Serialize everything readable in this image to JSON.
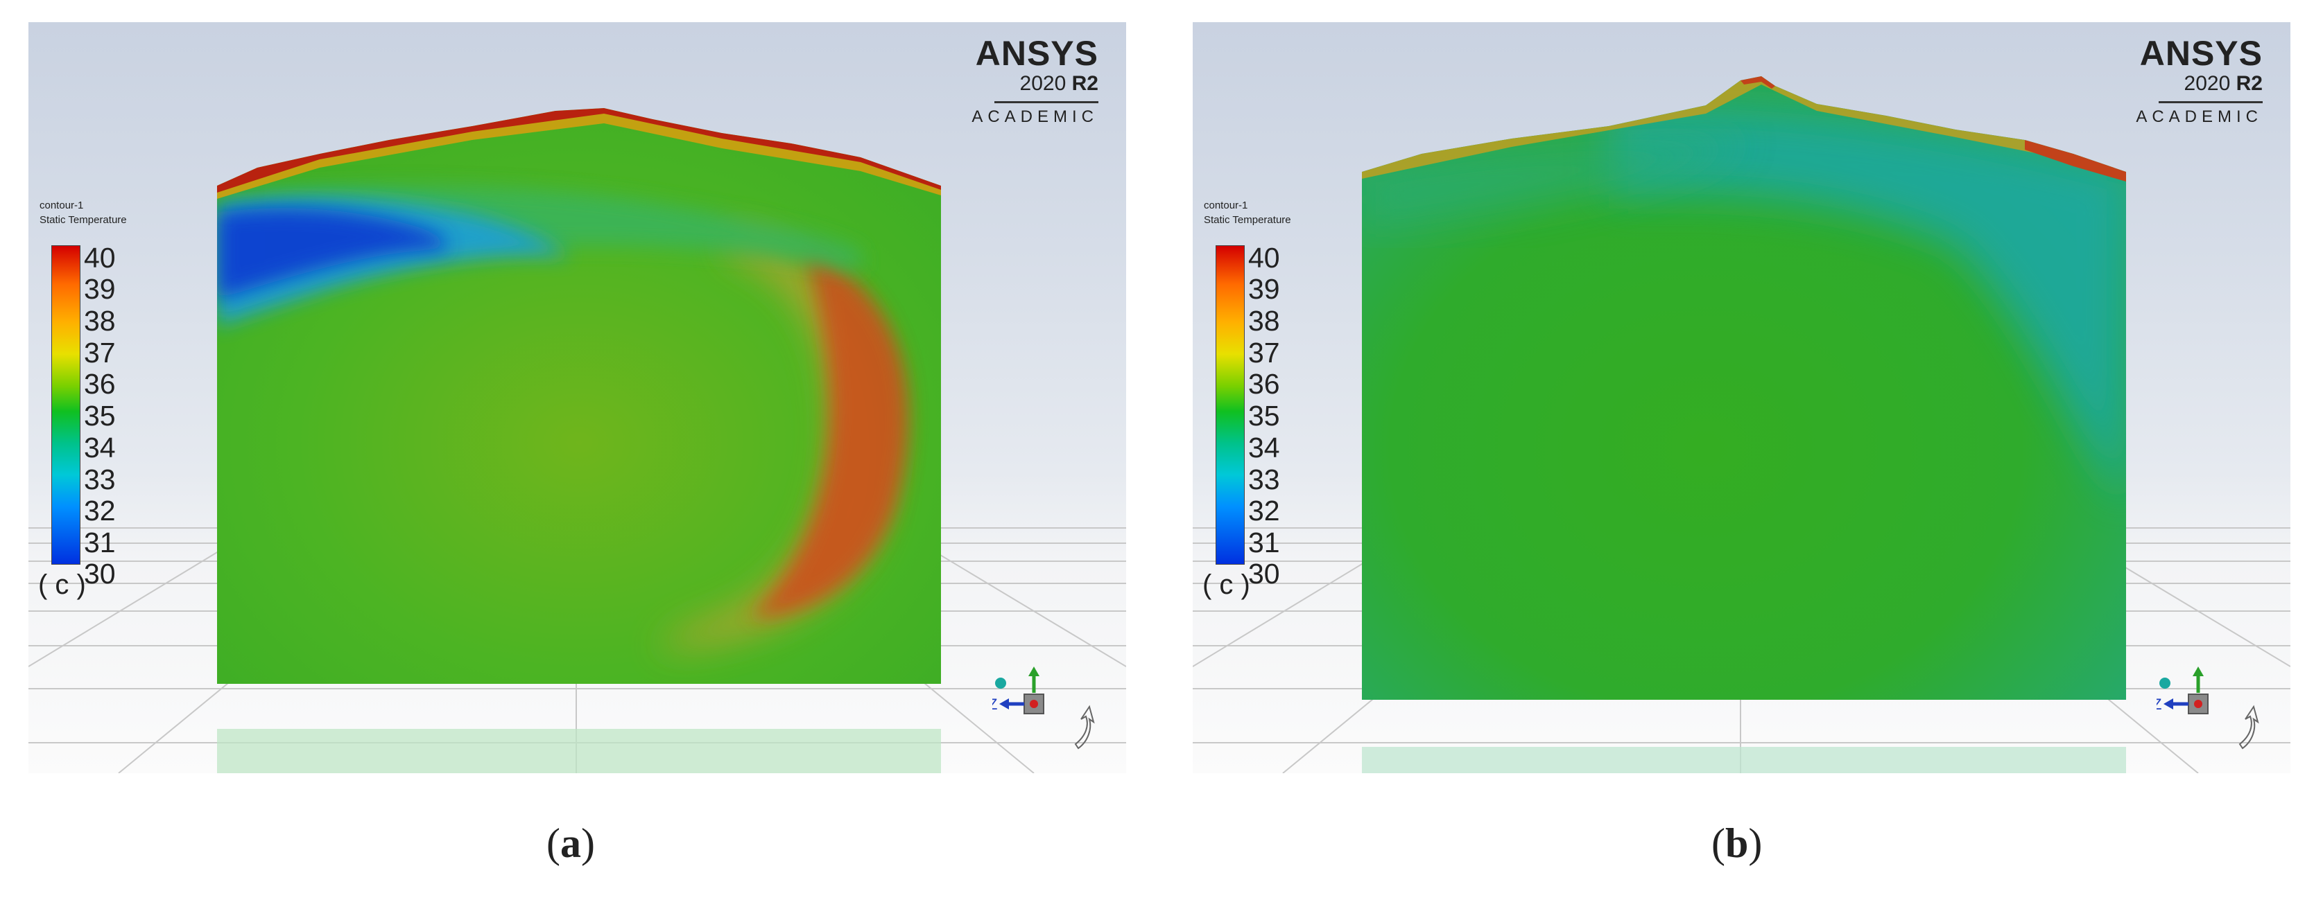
{
  "panels": [
    {
      "id": "a",
      "brand": {
        "title": "ANSYS",
        "year": "2020",
        "release": "R2",
        "edition": "ACADEMIC"
      },
      "legend": {
        "name": "contour-1",
        "variable": "Static Temperature",
        "ticks": [
          "40",
          "39",
          "38",
          "37",
          "36",
          "35",
          "34",
          "33",
          "32",
          "31",
          "30"
        ],
        "unit": "( c )"
      },
      "triad": {
        "z_label": "Z"
      },
      "caption": "a"
    },
    {
      "id": "b",
      "brand": {
        "title": "ANSYS",
        "year": "2020",
        "release": "R2",
        "edition": "ACADEMIC"
      },
      "legend": {
        "name": "contour-1",
        "variable": "Static Temperature",
        "ticks": [
          "40",
          "39",
          "38",
          "37",
          "36",
          "35",
          "34",
          "33",
          "32",
          "31",
          "30"
        ],
        "unit": "( c )"
      },
      "triad": {
        "z_label": "Z"
      },
      "caption": "b"
    }
  ],
  "colors": {
    "cold": "#0a3fd0",
    "neutral": "#4bb521",
    "hot": "#d9531e",
    "cool_cyan": "#1aa8a0"
  }
}
